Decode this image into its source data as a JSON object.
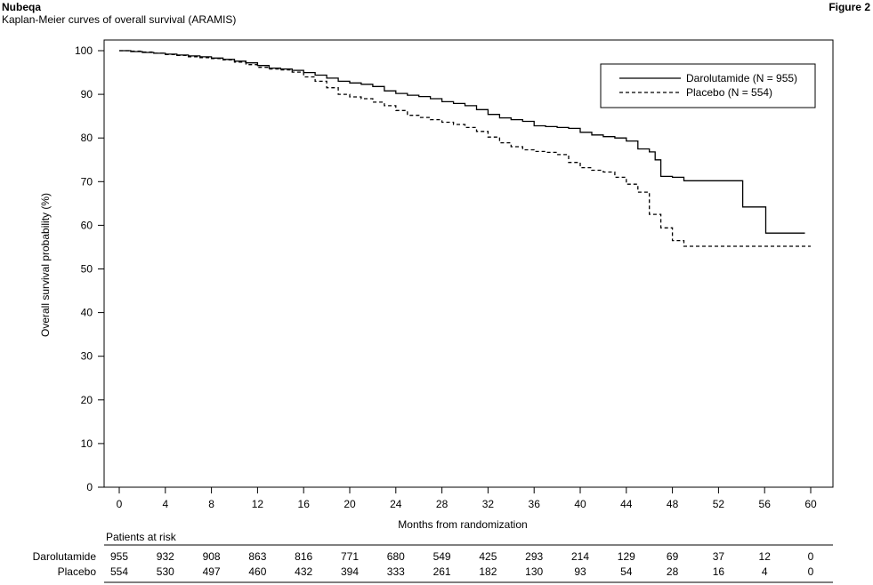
{
  "header": {
    "brand": "Nubeqa",
    "subtitle": "Kaplan-Meier curves of overall survival (ARAMIS)",
    "figure_label": "Figure 2"
  },
  "chart_data": {
    "type": "line",
    "subtitle": "Kaplan-Meier curves of overall survival (ARAMIS)",
    "xlabel": "Months from randomization",
    "ylabel": "Overall survival probability (%)",
    "xlim": [
      0,
      60
    ],
    "ylim": [
      0,
      100
    ],
    "x_ticks": [
      0,
      4,
      8,
      12,
      16,
      20,
      24,
      28,
      32,
      36,
      40,
      44,
      48,
      52,
      56,
      60
    ],
    "y_ticks": [
      0,
      10,
      20,
      30,
      40,
      50,
      60,
      70,
      80,
      90,
      100
    ],
    "grid": false,
    "legend_position": "top-right",
    "series": [
      {
        "name": "Darolutamide (N = 955)",
        "line_style": "solid",
        "color": "#000000",
        "x": [
          0,
          1,
          2,
          3,
          4,
          5,
          6,
          7,
          8,
          9,
          10,
          11,
          12,
          13,
          14,
          15,
          16,
          17,
          18,
          19,
          20,
          21,
          22,
          23,
          24,
          25,
          26,
          27,
          28,
          29,
          30,
          31,
          32,
          33,
          34,
          35,
          36,
          37,
          38,
          39,
          40,
          41,
          42,
          43,
          44,
          45,
          46,
          46.5,
          47,
          48,
          49,
          50,
          51,
          52,
          53,
          54,
          54.1,
          55,
          56,
          56.1,
          57,
          58,
          59.5
        ],
        "y": [
          100,
          99.8,
          99.6,
          99.4,
          99.2,
          99.0,
          98.8,
          98.6,
          98.3,
          98.0,
          97.6,
          97.2,
          96.6,
          96.0,
          95.8,
          95.5,
          95.0,
          94.4,
          93.7,
          93.0,
          92.6,
          92.3,
          91.8,
          90.8,
          90.2,
          89.8,
          89.5,
          89.0,
          88.3,
          87.9,
          87.4,
          86.5,
          85.4,
          84.6,
          84.2,
          83.8,
          82.8,
          82.6,
          82.4,
          82.2,
          81.3,
          80.7,
          80.3,
          80.0,
          79.3,
          77.5,
          76.8,
          75.0,
          71.2,
          71.0,
          70.2,
          70.2,
          70.2,
          70.2,
          70.2,
          70.2,
          64.2,
          64.2,
          64.2,
          58.2,
          58.2,
          58.2,
          58.2
        ]
      },
      {
        "name": "Placebo (N = 554)",
        "line_style": "dashed",
        "color": "#000000",
        "x": [
          0,
          1,
          2,
          3,
          4,
          5,
          6,
          7,
          8,
          9,
          10,
          11,
          12,
          13,
          14,
          15,
          16,
          17,
          18,
          19,
          20,
          21,
          22,
          23,
          24,
          25,
          26,
          27,
          28,
          29,
          30,
          31,
          32,
          33,
          34,
          35,
          36,
          37,
          38,
          39,
          40,
          41,
          42,
          43,
          44,
          45,
          46,
          47,
          48,
          49,
          50,
          52,
          54,
          56,
          58,
          60
        ],
        "y": [
          100,
          99.9,
          99.7,
          99.4,
          99.1,
          98.9,
          98.6,
          98.4,
          98.2,
          97.9,
          97.4,
          96.8,
          96.2,
          95.8,
          95.6,
          95.1,
          94.0,
          93.0,
          91.5,
          90.0,
          89.4,
          89.0,
          88.2,
          87.4,
          86.3,
          85.2,
          84.7,
          84.2,
          83.6,
          83.1,
          82.4,
          81.5,
          80.2,
          78.9,
          78.0,
          77.3,
          76.9,
          76.7,
          76.2,
          74.4,
          73.2,
          72.6,
          72.2,
          71.0,
          69.4,
          67.6,
          62.5,
          59.4,
          56.5,
          55.2,
          55.2,
          55.2,
          55.2,
          55.2,
          55.2,
          55.2
        ]
      }
    ],
    "risk_table": {
      "title": "Patients at risk",
      "time_points": [
        0,
        4,
        8,
        12,
        16,
        20,
        24,
        28,
        32,
        36,
        40,
        44,
        48,
        52,
        56,
        60
      ],
      "rows": [
        {
          "label": "Darolutamide",
          "values": [
            955,
            932,
            908,
            863,
            816,
            771,
            680,
            549,
            425,
            293,
            214,
            129,
            69,
            37,
            12,
            0
          ]
        },
        {
          "label": "Placebo",
          "values": [
            554,
            530,
            497,
            460,
            432,
            394,
            333,
            261,
            182,
            130,
            93,
            54,
            28,
            16,
            4,
            0
          ]
        }
      ]
    }
  }
}
